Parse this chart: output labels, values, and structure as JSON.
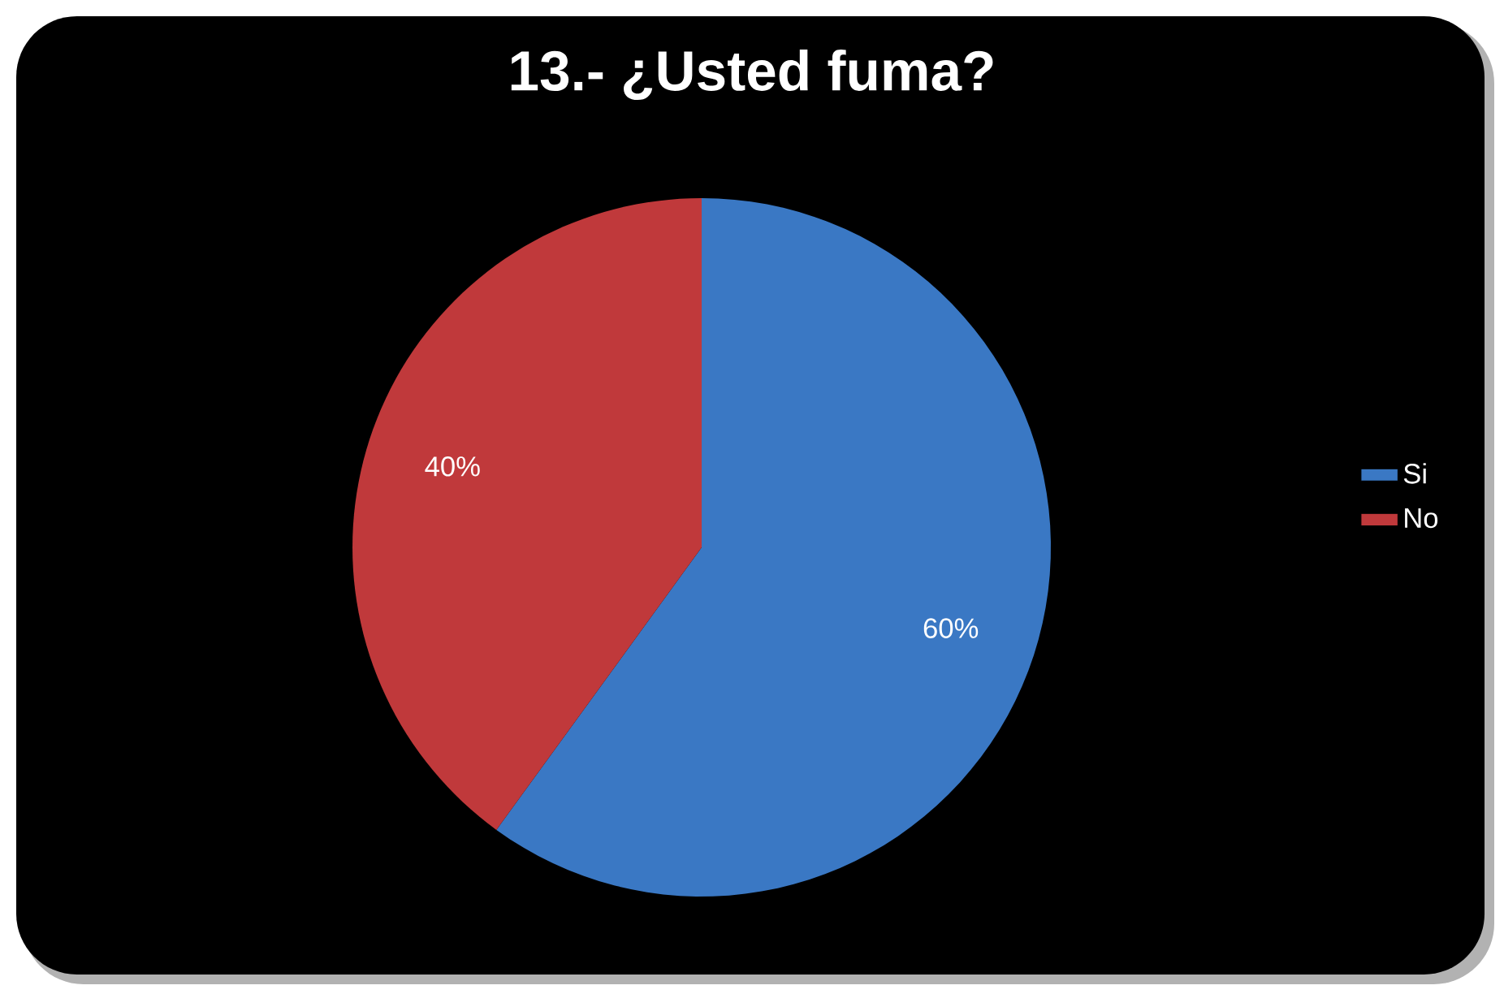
{
  "chart_data": {
    "type": "pie",
    "title": "13.- ¿Usted fuma?",
    "categories": [
      "Si",
      "No"
    ],
    "values": [
      60,
      40
    ],
    "colors": [
      "#3a78c4",
      "#c0393b"
    ],
    "value_labels": [
      "60%",
      "40%"
    ],
    "legend": "right"
  }
}
